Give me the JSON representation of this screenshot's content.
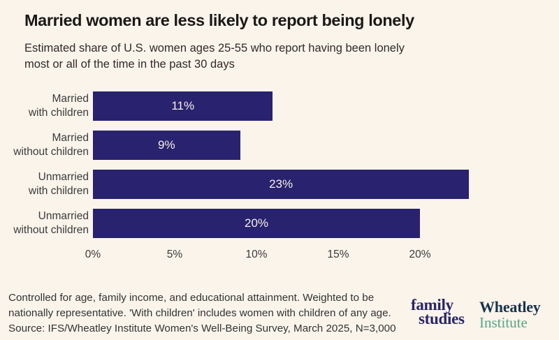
{
  "header": {
    "title": "Married women are less likely to report being lonely",
    "subtitle_line1": "Estimated share of U.S. women ages 25-55 who report having been lonely",
    "subtitle_line2": "most or all of the time in the past 30 days"
  },
  "chart_data": {
    "type": "bar",
    "orientation": "horizontal",
    "title": "Married women are less likely to report being lonely",
    "subtitle": "Estimated share of U.S. women ages 25-55 who report having been lonely most or all of the time in the past 30 days",
    "categories": [
      "Married with children",
      "Married without children",
      "Unmarried with children",
      "Unmarried without children"
    ],
    "category_lines": [
      [
        "Married",
        "with children"
      ],
      [
        "Married",
        "without children"
      ],
      [
        "Unmarried",
        "with children"
      ],
      [
        "Unmarried",
        "without children"
      ]
    ],
    "values": [
      11,
      9,
      23,
      20
    ],
    "value_labels": [
      "11%",
      "9%",
      "23%",
      "20%"
    ],
    "x_tick_values": [
      0,
      5,
      10,
      15,
      20
    ],
    "x_tick_labels": [
      "0%",
      "5%",
      "10%",
      "15%",
      "20%"
    ],
    "xlim": [
      0,
      23.5
    ],
    "grid": false,
    "legend": false,
    "bar_color": "#28226f",
    "bar_label_color": "#f7f1e7"
  },
  "footer": {
    "notes": [
      "Controlled for age, family income, and educational attainment. Weighted to be",
      "nationally representative. 'With children' includes women with children of any age.",
      "Source: IFS/Wheatley Institute Women's Well-Being Survey, March 2025, N=3,000"
    ],
    "logos": {
      "ifs": {
        "line1": "family",
        "line2": "studies",
        "color": "#2b2568"
      },
      "wheatley": {
        "line1": "Wheatley",
        "line2": "Institute",
        "color1": "#17334c",
        "color2": "#58a685"
      }
    }
  },
  "colors": {
    "background": "#faf4eb",
    "title": "#1a1916",
    "text": "#333333"
  }
}
